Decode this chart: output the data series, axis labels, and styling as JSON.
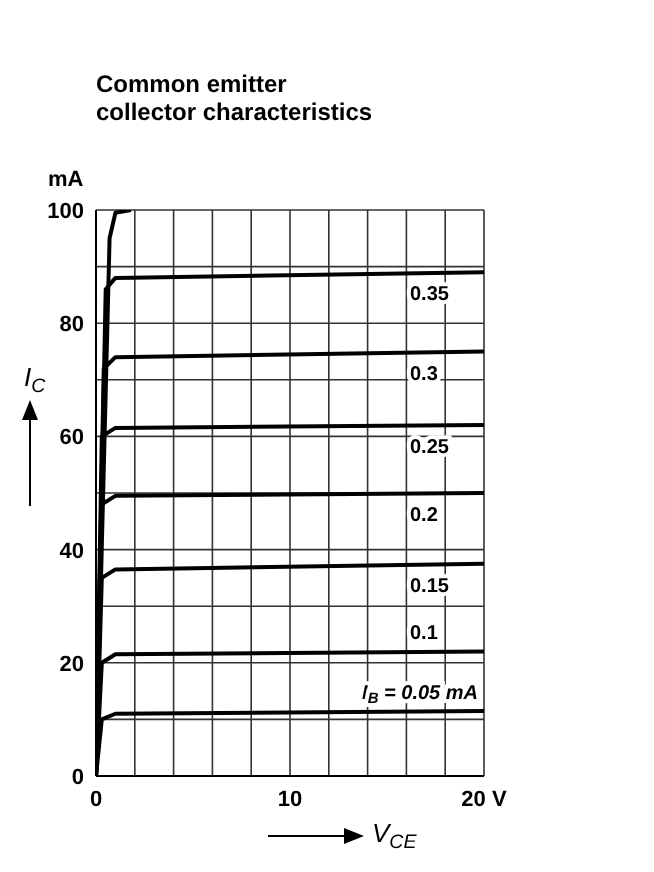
{
  "chart_data": {
    "type": "line",
    "title": "Common emitter\ncollector characteristics",
    "xlabel": "V$_{CE}$",
    "ylabel": "I$_{C}$",
    "annotations": [
      "mA"
    ],
    "xlim": [
      0,
      20
    ],
    "xticks": [
      0,
      {
        "value": 2,
        "label": null
      },
      {
        "value": 4,
        "label": null
      },
      {
        "value": 6,
        "label": null
      },
      {
        "value": 8,
        "label": null
      },
      10,
      {
        "value": 12,
        "label": null
      },
      {
        "value": 14,
        "label": null
      },
      {
        "value": 16,
        "label": null
      },
      {
        "value": 18,
        "label": null
      },
      {
        "value": 20,
        "label": "20 V"
      }
    ],
    "ylim": [
      0,
      100
    ],
    "yticks": [
      0,
      {
        "value": 10,
        "label": null
      },
      20,
      {
        "value": 30,
        "label": null
      },
      40,
      {
        "value": 50,
        "label": null
      },
      60,
      {
        "value": 70,
        "label": null
      },
      80,
      {
        "value": 90,
        "label": null
      },
      100
    ],
    "grid": true,
    "legend": false,
    "marker": "none",
    "line_style": "solid",
    "series": [
      {
        "name": "I$_{B}$ = 0.05 mA",
        "color": "#000000",
        "x": [
          0,
          0.3,
          1,
          20
        ],
        "values": [
          0,
          10,
          11,
          11.5
        ]
      },
      {
        "name": "0.1",
        "color": "#000000",
        "x": [
          0,
          0.3,
          1,
          20
        ],
        "values": [
          0,
          20,
          21.5,
          22
        ]
      },
      {
        "name": "0.15",
        "color": "#000000",
        "x": [
          0,
          0.3,
          1,
          20
        ],
        "values": [
          0,
          35,
          36.5,
          37.5
        ]
      },
      {
        "name": "0.2",
        "color": "#000000",
        "x": [
          0,
          0.3,
          1,
          20
        ],
        "values": [
          0,
          48,
          49.5,
          50
        ]
      },
      {
        "name": "0.25",
        "color": "#000000",
        "x": [
          0,
          0.3,
          1,
          20
        ],
        "values": [
          0,
          60,
          61.5,
          62
        ]
      },
      {
        "name": "0.3",
        "color": "#000000",
        "x": [
          0,
          0.4,
          1,
          20
        ],
        "values": [
          0,
          72,
          74,
          75
        ]
      },
      {
        "name": "0.35",
        "color": "#000000",
        "x": [
          0,
          0.5,
          1,
          20
        ],
        "values": [
          0,
          86,
          88,
          89
        ]
      },
      {
        "color": "#000000",
        "x": [
          0,
          0.7,
          1,
          1.8
        ],
        "values": [
          0,
          95,
          99.5,
          100
        ]
      }
    ]
  }
}
